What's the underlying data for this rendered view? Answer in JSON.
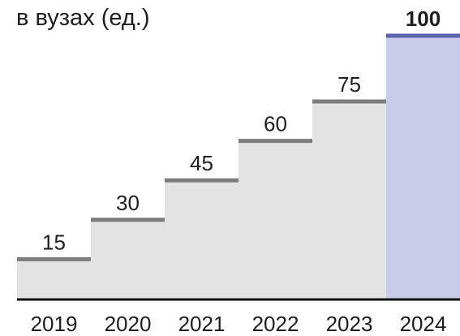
{
  "chart_data": {
    "type": "bar",
    "title": "в вузах (ед.)",
    "categories": [
      "2019",
      "2020",
      "2021",
      "2022",
      "2023",
      "2024"
    ],
    "values": [
      15,
      30,
      45,
      60,
      75,
      100
    ],
    "highlight_index": 5,
    "ylim": [
      0,
      100
    ],
    "grid": false,
    "legend": "none",
    "colors": {
      "step_fill": "#e3e3e3",
      "step_cap": "#7d7d7d",
      "highlight_fill": "#c9cbe8",
      "highlight_cap": "#5a62b0",
      "highlight_label": "#4a52a6",
      "baseline": "#111111"
    }
  }
}
